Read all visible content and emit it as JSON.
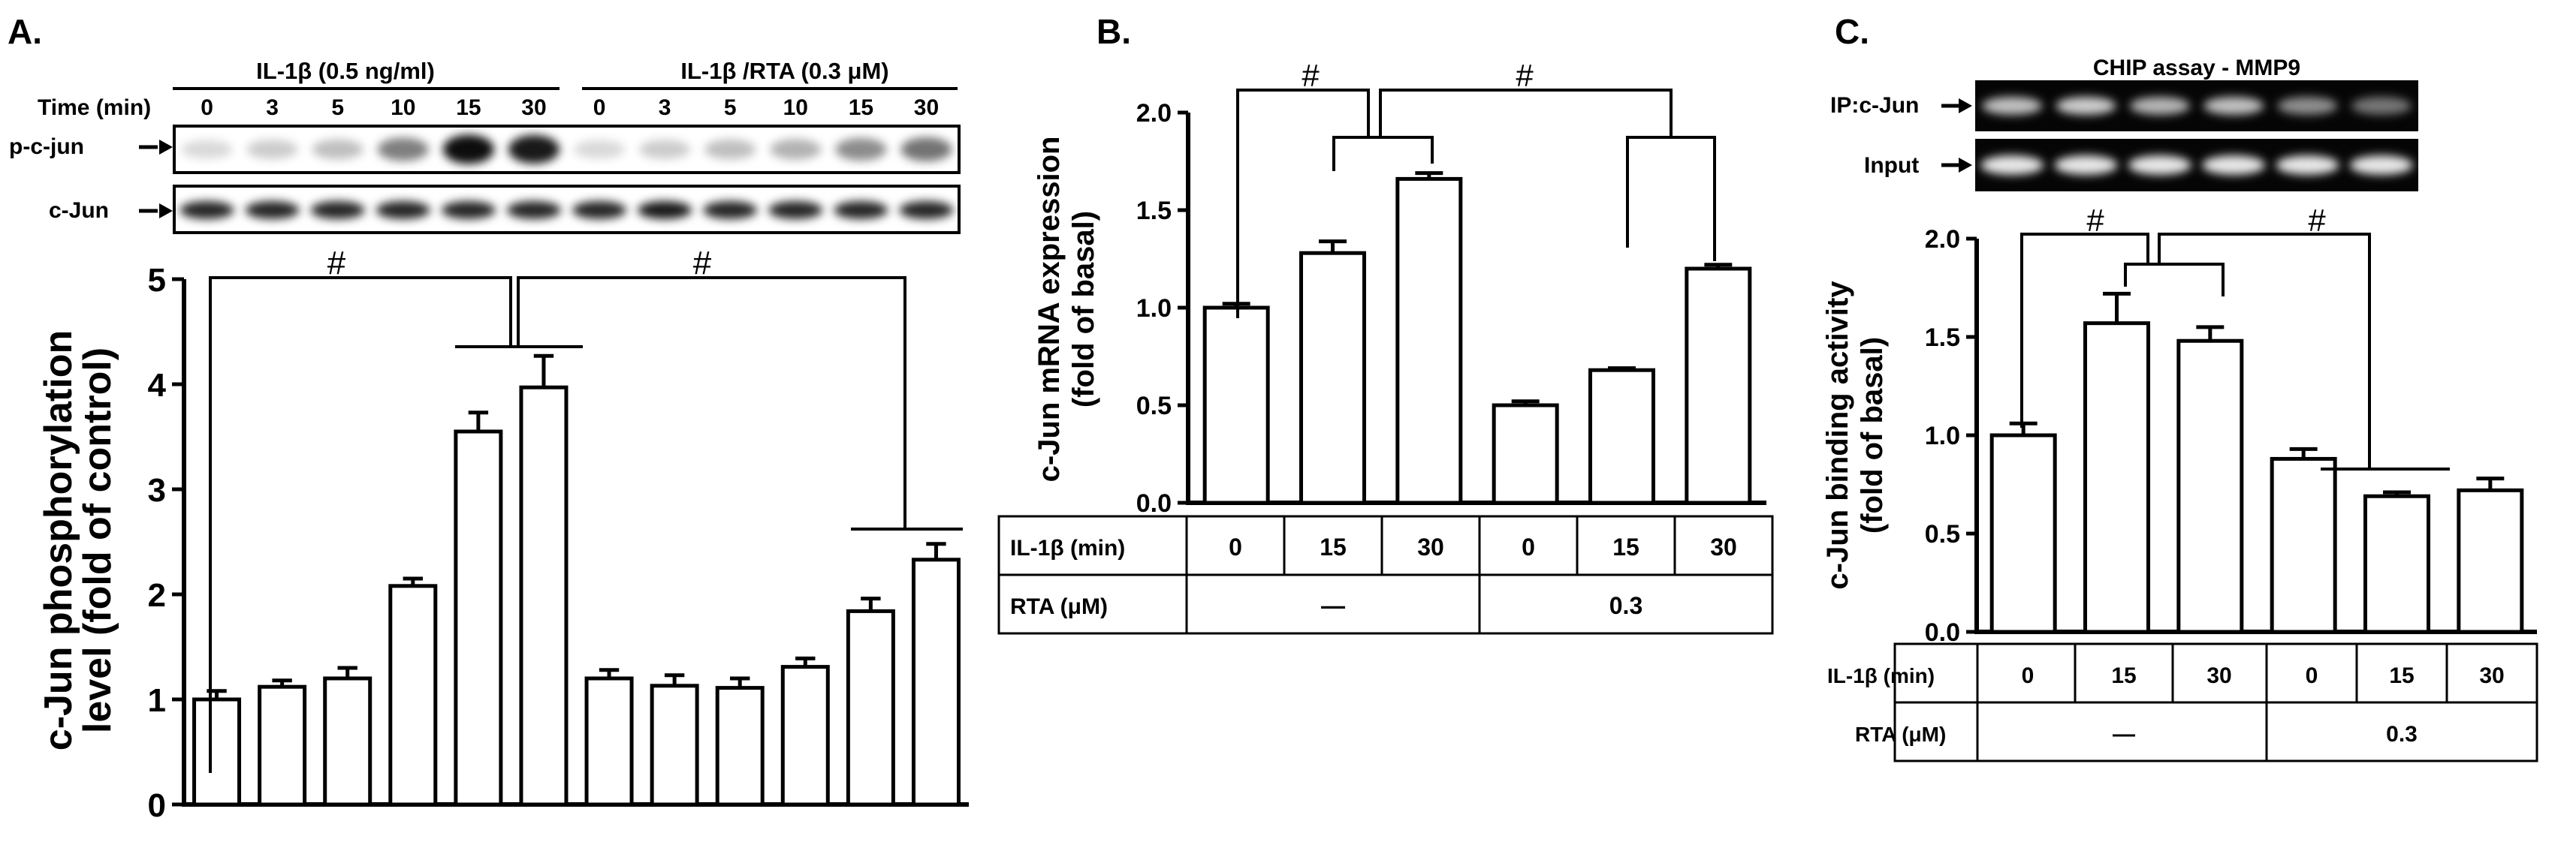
{
  "panels": {
    "A": {
      "letter": "A.",
      "blot": {
        "header_left": "IL-1β (0.5 ng/ml)",
        "header_right": "IL-1β /RTA (0.3 μM)",
        "time_label": "Time (min)",
        "times": [
          "0",
          "3",
          "5",
          "10",
          "15",
          "30",
          "0",
          "3",
          "5",
          "10",
          "15",
          "30"
        ],
        "row1_label": "p-c-jun",
        "row2_label": "c-Jun",
        "row1_intensity": [
          0.15,
          0.2,
          0.25,
          0.5,
          0.95,
          0.9,
          0.15,
          0.2,
          0.25,
          0.3,
          0.45,
          0.55
        ],
        "row2_intensity": [
          0.85,
          0.85,
          0.85,
          0.85,
          0.85,
          0.85,
          0.85,
          0.9,
          0.85,
          0.85,
          0.85,
          0.85
        ]
      },
      "sig_symbols": [
        "#",
        "#"
      ]
    },
    "B": {
      "letter": "B.",
      "sig_symbols": [
        "#",
        "#"
      ]
    },
    "C": {
      "letter": "C.",
      "gel_title": "CHIP assay - MMP9",
      "row1_label": "IP:c-Jun",
      "row2_label": "Input",
      "row1_intensity": [
        0.75,
        0.8,
        0.7,
        0.75,
        0.55,
        0.45
      ],
      "row2_intensity": [
        0.9,
        0.9,
        0.9,
        0.9,
        0.9,
        0.9
      ],
      "sig_symbols": [
        "#",
        "#"
      ]
    }
  },
  "table": {
    "row1_label": "IL-1β (min)",
    "row2_label": "RTA (μM)",
    "times": [
      "0",
      "15",
      "30",
      "0",
      "15",
      "30"
    ],
    "group1": "—",
    "group2": "0.3"
  },
  "chart_data": [
    {
      "type": "bar",
      "panel": "A",
      "ylabel": "c-Jun phosphorylation level (fold of control)",
      "ylim": [
        0,
        5
      ],
      "yticks": [
        "0",
        "1",
        "2",
        "3",
        "4",
        "5"
      ],
      "values": [
        1.0,
        1.12,
        1.2,
        2.08,
        3.55,
        3.97,
        1.2,
        1.13,
        1.11,
        1.31,
        1.84,
        2.33
      ],
      "errors": [
        0.08,
        0.06,
        0.1,
        0.07,
        0.18,
        0.3,
        0.08,
        0.1,
        0.09,
        0.08,
        0.12,
        0.15
      ]
    },
    {
      "type": "bar",
      "panel": "B",
      "ylabel": "c-Jun mRNA expression (fold of basal)",
      "ylim": [
        0,
        2.0
      ],
      "yticks": [
        "0.0",
        "0.5",
        "1.0",
        "1.5",
        "2.0"
      ],
      "values": [
        1.0,
        1.28,
        1.66,
        0.5,
        0.68,
        1.2
      ],
      "errors": [
        0.02,
        0.06,
        0.03,
        0.02,
        0.01,
        0.02
      ]
    },
    {
      "type": "bar",
      "panel": "C",
      "ylabel": "c-Jun binding activity (fold of basal)",
      "ylim": [
        0,
        2.0
      ],
      "yticks": [
        "0.0",
        "0.5",
        "1.0",
        "1.5",
        "2.0"
      ],
      "values": [
        1.0,
        1.57,
        1.48,
        0.88,
        0.69,
        0.72
      ],
      "errors": [
        0.06,
        0.15,
        0.07,
        0.05,
        0.02,
        0.06
      ]
    }
  ]
}
